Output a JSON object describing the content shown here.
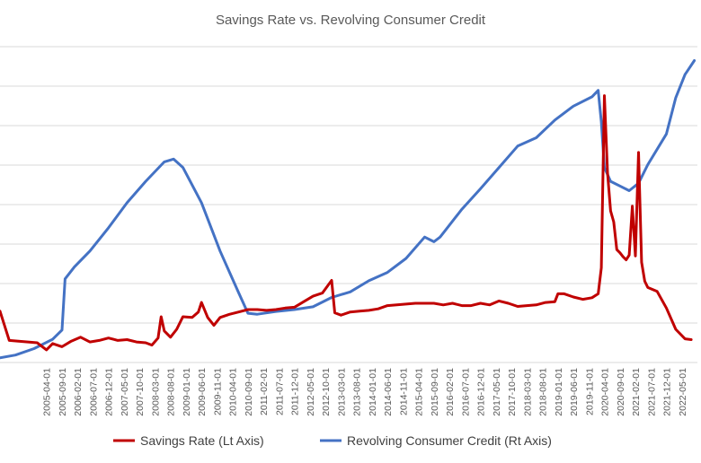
{
  "chart_data": {
    "type": "line",
    "title": "Savings Rate vs. Revolving Consumer Credit",
    "xlabel": "",
    "ylabel": "",
    "grid": true,
    "legend_position": "bottom",
    "left_axis_tick_labels_visible": false,
    "right_axis_tick_labels_visible": false,
    "xlim": [
      "2004-01",
      "2022-10"
    ],
    "x_tick_labels": [
      "2005-04-01",
      "2005-09-01",
      "2006-02-01",
      "2006-07-01",
      "2006-12-01",
      "2007-05-01",
      "2007-10-01",
      "2008-03-01",
      "2008-08-01",
      "2009-01-01",
      "2009-06-01",
      "2009-11-01",
      "2010-04-01",
      "2010-09-01",
      "2011-02-01",
      "2011-07-01",
      "2011-12-01",
      "2012-05-01",
      "2012-10-01",
      "2013-03-01",
      "2013-08-01",
      "2014-01-01",
      "2014-06-01",
      "2014-11-01",
      "2015-04-01",
      "2015-09-01",
      "2016-02-01",
      "2016-07-01",
      "2016-12-01",
      "2017-05-01",
      "2017-10-01",
      "2018-03-01",
      "2018-08-01",
      "2019-01-01",
      "2019-06-01",
      "2019-11-01",
      "2020-04-01",
      "2020-09-01",
      "2021-02-01",
      "2021-07-01",
      "2021-12-01",
      "2022-05-01"
    ],
    "series": [
      {
        "name": "Savings Rate (Lt Axis)",
        "axis": "left",
        "color": "#c00000",
        "x": [
          "2004-01",
          "2004-04",
          "2005-01",
          "2005-04",
          "2005-06",
          "2005-09",
          "2005-12",
          "2006-03",
          "2006-06",
          "2006-09",
          "2006-12",
          "2007-03",
          "2007-06",
          "2007-09",
          "2007-12",
          "2008-02",
          "2008-04",
          "2008-05",
          "2008-06",
          "2008-08",
          "2008-10",
          "2008-12",
          "2009-03",
          "2009-05",
          "2009-06",
          "2009-08",
          "2009-10",
          "2009-12",
          "2010-03",
          "2010-06",
          "2010-09",
          "2010-12",
          "2011-03",
          "2011-06",
          "2011-09",
          "2011-12",
          "2012-03",
          "2012-06",
          "2012-09",
          "2012-12",
          "2013-01",
          "2013-03",
          "2013-06",
          "2013-09",
          "2013-12",
          "2014-03",
          "2014-06",
          "2014-09",
          "2014-12",
          "2015-03",
          "2015-06",
          "2015-09",
          "2015-12",
          "2016-03",
          "2016-06",
          "2016-09",
          "2016-12",
          "2017-03",
          "2017-06",
          "2017-09",
          "2017-12",
          "2018-03",
          "2018-06",
          "2018-09",
          "2018-12",
          "2019-01",
          "2019-03",
          "2019-06",
          "2019-09",
          "2019-12",
          "2020-02",
          "2020-03",
          "2020-04",
          "2020-05",
          "2020-06",
          "2020-07",
          "2020-08",
          "2020-09",
          "2020-10",
          "2020-11",
          "2020-12",
          "2021-01",
          "2021-02",
          "2021-03",
          "2021-04",
          "2021-05",
          "2021-06",
          "2021-09",
          "2021-12",
          "2022-03",
          "2022-06",
          "2022-08"
        ],
        "values": [
          6.5,
          2.8,
          2.5,
          1.6,
          2.4,
          2.0,
          2.7,
          3.2,
          2.6,
          2.8,
          3.1,
          2.8,
          2.9,
          2.6,
          2.5,
          2.2,
          3.1,
          5.8,
          4.0,
          3.2,
          4.2,
          5.8,
          5.7,
          6.4,
          7.6,
          5.7,
          4.7,
          5.7,
          6.1,
          6.4,
          6.7,
          6.7,
          6.6,
          6.7,
          6.9,
          7.0,
          7.7,
          8.4,
          8.8,
          10.4,
          6.3,
          6.0,
          6.4,
          6.5,
          6.6,
          6.8,
          7.2,
          7.3,
          7.4,
          7.5,
          7.5,
          7.5,
          7.3,
          7.5,
          7.2,
          7.2,
          7.5,
          7.3,
          7.8,
          7.5,
          7.1,
          7.2,
          7.3,
          7.6,
          7.7,
          8.7,
          8.7,
          8.3,
          8.0,
          8.2,
          8.7,
          12.0,
          33.8,
          24.0,
          19.2,
          17.8,
          14.3,
          13.9,
          13.4,
          13.0,
          13.6,
          19.8,
          13.5,
          26.6,
          12.7,
          10.3,
          9.5,
          9.0,
          6.9,
          4.2,
          3.0,
          2.9
        ]
      },
      {
        "name": "Revolving Consumer Credit (Rt Axis)",
        "axis": "right",
        "color": "#4472c4",
        "x": [
          "2004-01",
          "2004-06",
          "2004-12",
          "2005-06",
          "2005-09",
          "2005-10",
          "2006-01",
          "2006-06",
          "2006-12",
          "2007-06",
          "2007-12",
          "2008-06",
          "2008-09",
          "2008-12",
          "2009-06",
          "2009-12",
          "2010-06",
          "2010-09",
          "2010-12",
          "2011-06",
          "2011-12",
          "2012-06",
          "2012-12",
          "2013-06",
          "2013-12",
          "2014-06",
          "2014-12",
          "2015-06",
          "2015-09",
          "2015-11",
          "2016-06",
          "2016-12",
          "2017-06",
          "2017-12",
          "2018-06",
          "2018-12",
          "2019-06",
          "2019-12",
          "2020-02",
          "2020-03",
          "2020-04",
          "2020-06",
          "2020-09",
          "2020-12",
          "2021-03",
          "2021-06",
          "2021-12",
          "2022-03",
          "2022-06",
          "2022-09"
        ],
        "values": [
          795,
          798,
          805,
          815,
          825,
          880,
          893,
          910,
          935,
          962,
          985,
          1006,
          1009,
          1000,
          962,
          910,
          865,
          843,
          842,
          845,
          847,
          850,
          860,
          866,
          878,
          887,
          902,
          925,
          920,
          925,
          955,
          977,
          1000,
          1023,
          1032,
          1051,
          1066,
          1076,
          1083,
          1049,
          1000,
          985,
          980,
          975,
          983,
          1003,
          1036,
          1075,
          1100,
          1115
        ]
      }
    ]
  }
}
